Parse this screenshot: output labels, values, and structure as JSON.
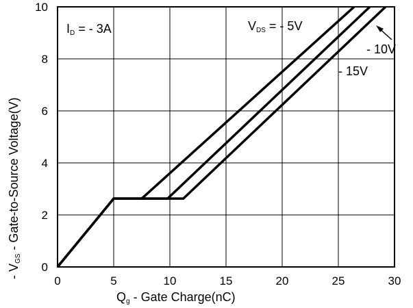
{
  "chart_data": {
    "type": "line",
    "xlabel": {
      "main": "Q",
      "sub": "g",
      "rest": " - Gate Charge(nC)"
    },
    "ylabel": {
      "pre": "- V",
      "sub": "GS",
      "rest": " - Gate-to-Source Voltage(V)"
    },
    "xlim": [
      0,
      30
    ],
    "ylim": [
      0,
      10
    ],
    "xticks": [
      0,
      5,
      10,
      15,
      20,
      25,
      30
    ],
    "yticks": [
      0,
      2,
      4,
      6,
      8,
      10
    ],
    "grid": true,
    "series": [
      {
        "name": "- 5V",
        "x": [
          0,
          5,
          7.5,
          26.4
        ],
        "y": [
          0,
          2.63,
          2.63,
          10
        ]
      },
      {
        "name": "- 10V",
        "x": [
          0,
          5,
          9.8,
          27.8
        ],
        "y": [
          0,
          2.63,
          2.63,
          10
        ]
      },
      {
        "name": "- 15V",
        "x": [
          0,
          5,
          11.2,
          29.2
        ],
        "y": [
          0,
          2.63,
          2.63,
          10
        ]
      }
    ],
    "annotations": {
      "current": {
        "pre": "I",
        "sub": "D",
        "rest": " = - 3A"
      },
      "vds": {
        "pre": "V",
        "sub": "DS",
        "rest": " = - 5V"
      },
      "label_10": "- 10V",
      "label_15": "- 15V"
    }
  }
}
